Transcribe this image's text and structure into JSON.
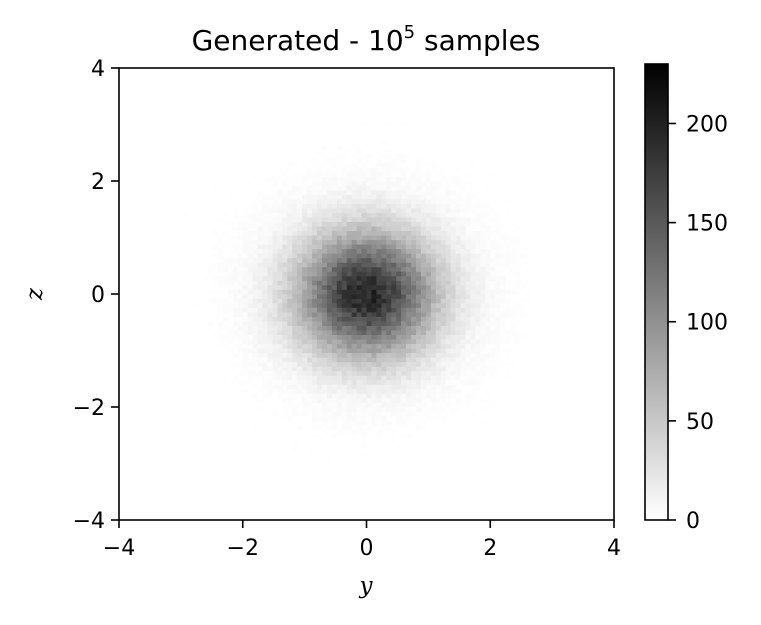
{
  "chart_data": {
    "type": "heatmap",
    "title": "Generated - 10",
    "title_superscript": "5",
    "title_suffix": " samples",
    "xlabel": "y",
    "ylabel": "z",
    "xlim": [
      -4,
      4
    ],
    "ylim": [
      -4,
      4
    ],
    "xticks": [
      -4,
      -2,
      0,
      2,
      4
    ],
    "yticks": [
      -4,
      -2,
      0,
      2,
      4
    ],
    "xtick_labels": [
      "−4",
      "−2",
      "0",
      "2",
      "4"
    ],
    "ytick_labels": [
      "−4",
      "−2",
      "0",
      "2",
      "4"
    ],
    "distribution": "2D Gaussian histogram",
    "center": [
      0,
      0
    ],
    "std": [
      0.75,
      0.75
    ],
    "bins": 100,
    "peak_count": 230,
    "colormap": "gray_r",
    "colorbar": {
      "min": 0,
      "max": 230,
      "ticks": [
        0,
        50,
        100,
        150,
        200
      ],
      "tick_labels": [
        "0",
        "50",
        "100",
        "150",
        "200"
      ]
    },
    "grid": false
  }
}
